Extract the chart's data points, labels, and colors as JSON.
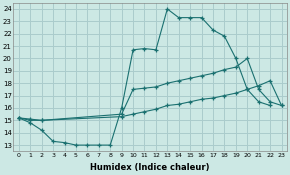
{
  "xlabel": "Humidex (Indice chaleur)",
  "bg_color": "#cce8e4",
  "grid_color": "#aacccc",
  "line_color": "#1a7070",
  "xlim": [
    -0.5,
    23.5
  ],
  "ylim": [
    12.5,
    24.5
  ],
  "xticks": [
    0,
    1,
    2,
    3,
    4,
    5,
    6,
    7,
    8,
    9,
    10,
    11,
    12,
    13,
    14,
    15,
    16,
    17,
    18,
    19,
    20,
    21,
    22,
    23
  ],
  "yticks": [
    13,
    14,
    15,
    16,
    17,
    18,
    19,
    20,
    21,
    22,
    23,
    24
  ],
  "line1_x": [
    0,
    1,
    2,
    3,
    4,
    5,
    6,
    7,
    8,
    9,
    10,
    11,
    12,
    13,
    14,
    15,
    16,
    17,
    18,
    19,
    20,
    21,
    22
  ],
  "line1_y": [
    15.2,
    14.8,
    14.2,
    13.3,
    13.2,
    13.0,
    13.0,
    13.0,
    13.0,
    16.0,
    20.7,
    20.8,
    20.7,
    24.0,
    23.3,
    23.3,
    23.3,
    22.3,
    21.8,
    20.0,
    17.5,
    16.5,
    16.2
  ],
  "line2_x": [
    0,
    1,
    2,
    9,
    10,
    11,
    12,
    13,
    14,
    15,
    16,
    17,
    18,
    19,
    20,
    21,
    22,
    23
  ],
  "line2_y": [
    15.2,
    15.1,
    15.0,
    15.5,
    17.5,
    17.6,
    17.7,
    18.0,
    18.2,
    18.4,
    18.6,
    18.8,
    19.1,
    19.3,
    20.0,
    17.5,
    16.5,
    16.2
  ],
  "line3_x": [
    0,
    1,
    2,
    9,
    10,
    11,
    12,
    13,
    14,
    15,
    16,
    17,
    18,
    19,
    20,
    21,
    22,
    23
  ],
  "line3_y": [
    15.2,
    15.0,
    15.0,
    15.3,
    15.5,
    15.7,
    15.9,
    16.2,
    16.3,
    16.5,
    16.7,
    16.8,
    17.0,
    17.2,
    17.5,
    17.8,
    18.2,
    16.2
  ]
}
